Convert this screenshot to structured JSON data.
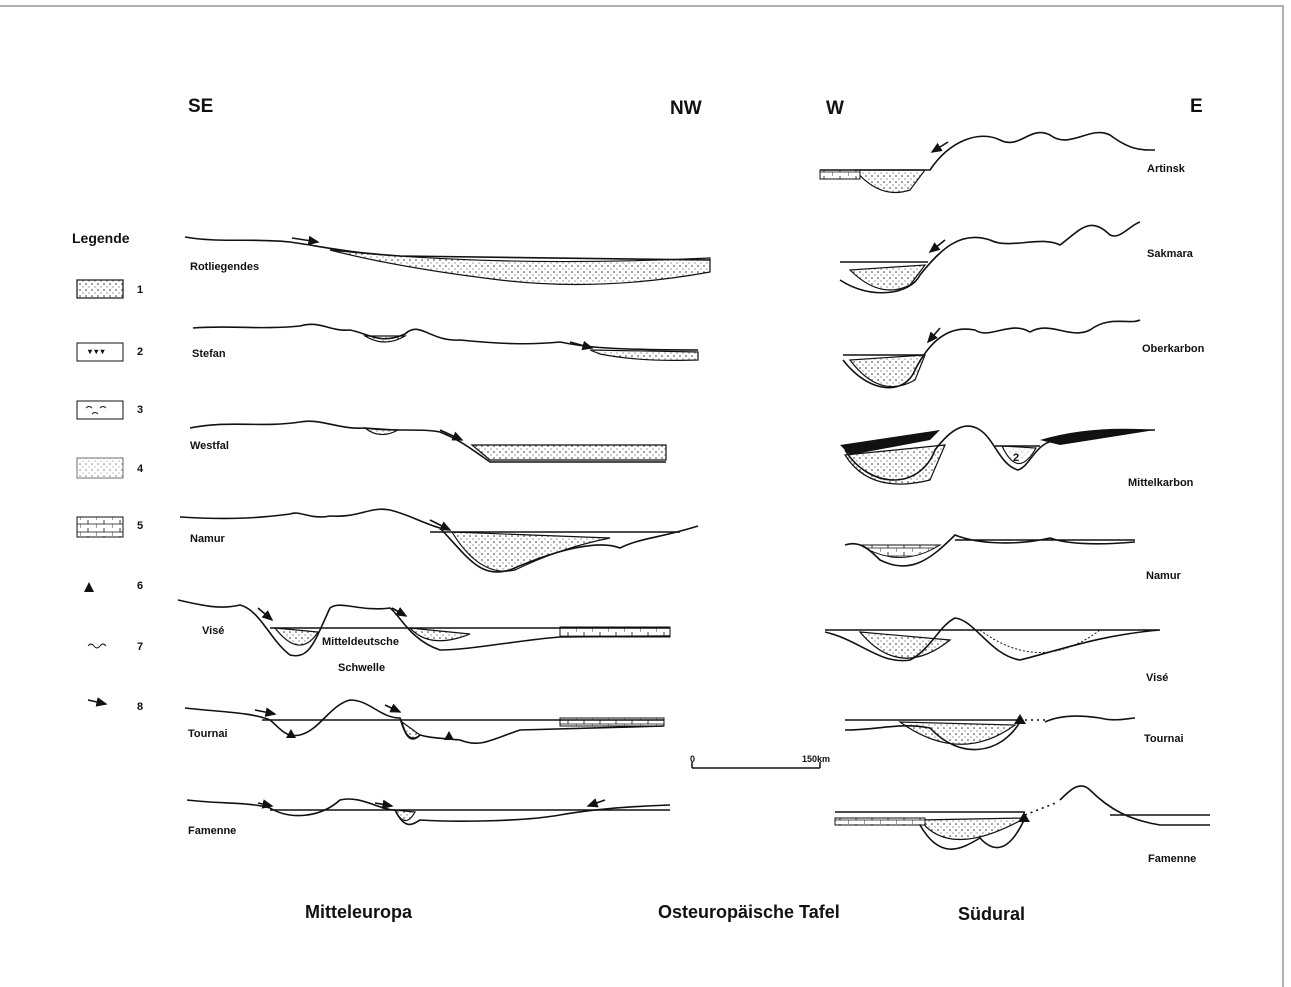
{
  "directions": {
    "left_start": "SE",
    "left_end": "NW",
    "right_start": "W",
    "right_end": "E"
  },
  "legend": {
    "title": "Legende",
    "items": [
      "1",
      "2",
      "3",
      "4",
      "5",
      "6",
      "7",
      "8"
    ]
  },
  "mitteleuropa": {
    "sections": [
      "Rotliegendes",
      "Stefan",
      "Westfal",
      "Namur",
      "Visé",
      "Tournai",
      "Famenne"
    ],
    "annotation": [
      "Mitteldeutsche",
      "Schwelle"
    ]
  },
  "sudural": {
    "sections": [
      "Artinsk",
      "Sakmara",
      "Oberkarbon",
      "Mittelkarbon",
      "Namur",
      "Visé",
      "Tournai",
      "Famenne"
    ],
    "annotation": "2"
  },
  "scale": {
    "start": "0",
    "end": "150km"
  },
  "regions": [
    "Mitteleuropa",
    "Osteuropäische Tafel",
    "Südural"
  ]
}
